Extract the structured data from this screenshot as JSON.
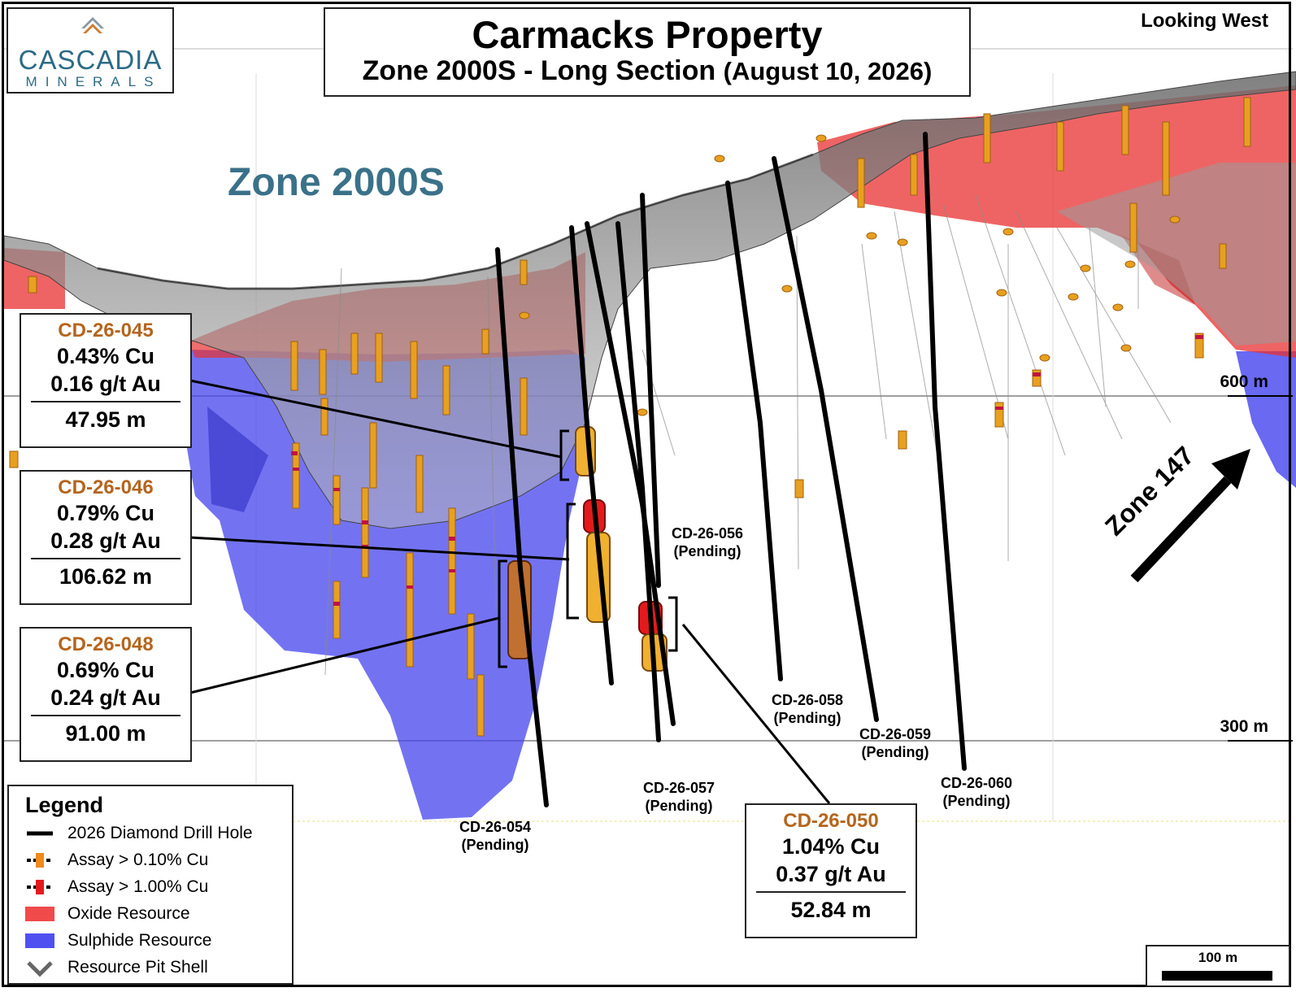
{
  "logo": {
    "name": "CASCADIA",
    "sub": "MINERALS"
  },
  "title": {
    "line1": "Carmacks Property",
    "line2": "Zone 2000S - Long Section",
    "date": "(August 10, 2026)"
  },
  "view": "Looking West",
  "zone_name": "Zone 2000S",
  "zone147": "Zone 147",
  "elevations": {
    "e600": "600 m",
    "e300": "300 m"
  },
  "intercepts": [
    {
      "hole": "CD-26-045",
      "cu": "0.43% Cu",
      "au": "0.16 g/t Au",
      "length": "47.95 m"
    },
    {
      "hole": "CD-26-046",
      "cu": "0.79% Cu",
      "au": "0.28 g/t Au",
      "length": "106.62 m"
    },
    {
      "hole": "CD-26-048",
      "cu": "0.69% Cu",
      "au": "0.24 g/t Au",
      "length": "91.00 m"
    },
    {
      "hole": "CD-26-050",
      "cu": "1.04% Cu",
      "au": "0.37 g/t Au",
      "length": "52.84 m"
    }
  ],
  "pending_holes": [
    {
      "hole": "CD-26-054",
      "status": "(Pending)"
    },
    {
      "hole": "CD-26-056",
      "status": "(Pending)"
    },
    {
      "hole": "CD-26-057",
      "status": "(Pending)"
    },
    {
      "hole": "CD-26-058",
      "status": "(Pending)"
    },
    {
      "hole": "CD-26-059",
      "status": "(Pending)"
    },
    {
      "hole": "CD-26-060",
      "status": "(Pending)"
    }
  ],
  "legend": {
    "title": "Legend",
    "items": [
      {
        "label": "2026 Diamond Drill Hole",
        "icon": "drill-hole-line"
      },
      {
        "label": "Assay > 0.10% Cu",
        "icon": "orange-assay",
        "color": "#f08a1c"
      },
      {
        "label": "Assay > 1.00% Cu",
        "icon": "red-assay",
        "color": "#e31a1c"
      },
      {
        "label": "Oxide Resource",
        "icon": "red-swatch",
        "color": "#f04a4a"
      },
      {
        "label": "Sulphide Resource",
        "icon": "blue-swatch",
        "color": "#5050f0"
      },
      {
        "label": "Resource Pit Shell",
        "icon": "pit-shell-chevron",
        "color": "#666666"
      }
    ]
  },
  "scale": "100 m",
  "colors": {
    "oxide": "#f04a4a",
    "sulphide": "#5050f0",
    "pit": "#8c8c8c",
    "hole_label": "#b5651d",
    "zone_text": "#3a7189"
  }
}
